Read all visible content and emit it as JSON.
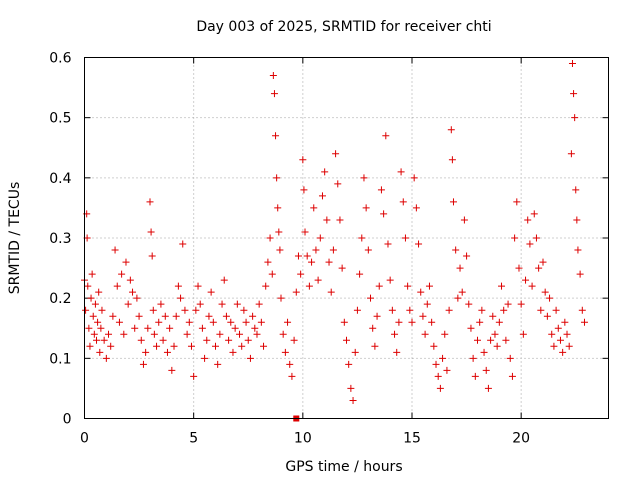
{
  "chart_data": {
    "type": "scatter",
    "title": "Day 003 of 2025, SRMTID for receiver chti",
    "xlabel": "GPS time / hours",
    "ylabel": "SRMTID / TECUs",
    "xlim": [
      0,
      24
    ],
    "ylim": [
      0,
      0.6
    ],
    "x_ticks": [
      0,
      5,
      10,
      15,
      20
    ],
    "x_tick_labels": [
      "0",
      "5",
      "10",
      "15",
      "20"
    ],
    "y_ticks": [
      0,
      0.1,
      0.2,
      0.3,
      0.4,
      0.5,
      0.6
    ],
    "y_tick_labels": [
      "0",
      "0.1",
      "0.2",
      "0.3",
      "0.4",
      "0.5",
      "0.6"
    ],
    "grid": true,
    "marker": "plus",
    "color": "#dd0000",
    "series": [
      {
        "name": "SRMTID",
        "points": [
          [
            0.0,
            0.23
          ],
          [
            0.05,
            0.18
          ],
          [
            0.1,
            0.34
          ],
          [
            0.12,
            0.3
          ],
          [
            0.15,
            0.22
          ],
          [
            0.2,
            0.15
          ],
          [
            0.25,
            0.12
          ],
          [
            0.3,
            0.2
          ],
          [
            0.35,
            0.24
          ],
          [
            0.4,
            0.17
          ],
          [
            0.45,
            0.14
          ],
          [
            0.5,
            0.19
          ],
          [
            0.55,
            0.13
          ],
          [
            0.6,
            0.16
          ],
          [
            0.65,
            0.21
          ],
          [
            0.7,
            0.11
          ],
          [
            0.75,
            0.15
          ],
          [
            0.8,
            0.18
          ],
          [
            0.9,
            0.13
          ],
          [
            1.0,
            0.1
          ],
          [
            1.1,
            0.14
          ],
          [
            1.2,
            0.12
          ],
          [
            1.3,
            0.17
          ],
          [
            1.4,
            0.28
          ],
          [
            1.5,
            0.22
          ],
          [
            1.6,
            0.16
          ],
          [
            1.7,
            0.24
          ],
          [
            1.8,
            0.14
          ],
          [
            1.9,
            0.26
          ],
          [
            2.0,
            0.19
          ],
          [
            2.1,
            0.23
          ],
          [
            2.2,
            0.21
          ],
          [
            2.3,
            0.15
          ],
          [
            2.4,
            0.2
          ],
          [
            2.5,
            0.17
          ],
          [
            2.6,
            0.13
          ],
          [
            2.7,
            0.09
          ],
          [
            2.8,
            0.11
          ],
          [
            2.9,
            0.15
          ],
          [
            3.0,
            0.36
          ],
          [
            3.05,
            0.31
          ],
          [
            3.1,
            0.27
          ],
          [
            3.15,
            0.18
          ],
          [
            3.2,
            0.14
          ],
          [
            3.3,
            0.12
          ],
          [
            3.4,
            0.16
          ],
          [
            3.5,
            0.19
          ],
          [
            3.6,
            0.13
          ],
          [
            3.7,
            0.17
          ],
          [
            3.8,
            0.11
          ],
          [
            3.9,
            0.15
          ],
          [
            4.0,
            0.08
          ],
          [
            4.1,
            0.12
          ],
          [
            4.2,
            0.17
          ],
          [
            4.3,
            0.22
          ],
          [
            4.4,
            0.2
          ],
          [
            4.5,
            0.29
          ],
          [
            4.6,
            0.18
          ],
          [
            4.7,
            0.14
          ],
          [
            4.8,
            0.16
          ],
          [
            4.9,
            0.12
          ],
          [
            5.0,
            0.07
          ],
          [
            5.1,
            0.18
          ],
          [
            5.2,
            0.22
          ],
          [
            5.3,
            0.19
          ],
          [
            5.4,
            0.15
          ],
          [
            5.5,
            0.1
          ],
          [
            5.6,
            0.13
          ],
          [
            5.7,
            0.17
          ],
          [
            5.8,
            0.21
          ],
          [
            5.9,
            0.16
          ],
          [
            6.0,
            0.12
          ],
          [
            6.1,
            0.09
          ],
          [
            6.2,
            0.14
          ],
          [
            6.3,
            0.19
          ],
          [
            6.4,
            0.23
          ],
          [
            6.5,
            0.17
          ],
          [
            6.6,
            0.13
          ],
          [
            6.7,
            0.16
          ],
          [
            6.8,
            0.11
          ],
          [
            6.9,
            0.15
          ],
          [
            7.0,
            0.19
          ],
          [
            7.1,
            0.14
          ],
          [
            7.2,
            0.12
          ],
          [
            7.3,
            0.18
          ],
          [
            7.4,
            0.16
          ],
          [
            7.5,
            0.13
          ],
          [
            7.6,
            0.1
          ],
          [
            7.7,
            0.17
          ],
          [
            7.8,
            0.15
          ],
          [
            7.9,
            0.14
          ],
          [
            8.0,
            0.19
          ],
          [
            8.1,
            0.16
          ],
          [
            8.2,
            0.12
          ],
          [
            8.3,
            0.22
          ],
          [
            8.4,
            0.26
          ],
          [
            8.5,
            0.3
          ],
          [
            8.6,
            0.24
          ],
          [
            8.65,
            0.57
          ],
          [
            8.7,
            0.54
          ],
          [
            8.75,
            0.47
          ],
          [
            8.8,
            0.4
          ],
          [
            8.85,
            0.35
          ],
          [
            8.9,
            0.31
          ],
          [
            8.95,
            0.28
          ],
          [
            9.0,
            0.2
          ],
          [
            9.1,
            0.14
          ],
          [
            9.2,
            0.11
          ],
          [
            9.3,
            0.16
          ],
          [
            9.4,
            0.09
          ],
          [
            9.5,
            0.07
          ],
          [
            9.6,
            0.13
          ],
          [
            9.7,
            0.21
          ],
          [
            9.8,
            0.27
          ],
          [
            9.9,
            0.24
          ],
          [
            10.0,
            0.43
          ],
          [
            10.05,
            0.38
          ],
          [
            10.1,
            0.31
          ],
          [
            10.2,
            0.27
          ],
          [
            10.3,
            0.22
          ],
          [
            10.4,
            0.26
          ],
          [
            10.5,
            0.35
          ],
          [
            10.6,
            0.28
          ],
          [
            10.7,
            0.23
          ],
          [
            10.8,
            0.3
          ],
          [
            10.9,
            0.37
          ],
          [
            11.0,
            0.41
          ],
          [
            11.1,
            0.33
          ],
          [
            11.2,
            0.26
          ],
          [
            11.3,
            0.21
          ],
          [
            11.4,
            0.28
          ],
          [
            11.5,
            0.44
          ],
          [
            11.6,
            0.39
          ],
          [
            11.7,
            0.33
          ],
          [
            11.8,
            0.25
          ],
          [
            11.9,
            0.16
          ],
          [
            12.0,
            0.13
          ],
          [
            12.1,
            0.09
          ],
          [
            12.2,
            0.05
          ],
          [
            12.3,
            0.03
          ],
          [
            12.4,
            0.11
          ],
          [
            12.5,
            0.18
          ],
          [
            12.6,
            0.24
          ],
          [
            12.7,
            0.3
          ],
          [
            12.8,
            0.4
          ],
          [
            12.9,
            0.35
          ],
          [
            13.0,
            0.28
          ],
          [
            13.1,
            0.2
          ],
          [
            13.2,
            0.15
          ],
          [
            13.3,
            0.12
          ],
          [
            13.4,
            0.17
          ],
          [
            13.5,
            0.22
          ],
          [
            13.6,
            0.38
          ],
          [
            13.7,
            0.34
          ],
          [
            13.8,
            0.47
          ],
          [
            13.9,
            0.29
          ],
          [
            14.0,
            0.23
          ],
          [
            14.1,
            0.18
          ],
          [
            14.2,
            0.14
          ],
          [
            14.3,
            0.11
          ],
          [
            14.4,
            0.16
          ],
          [
            14.5,
            0.41
          ],
          [
            14.6,
            0.36
          ],
          [
            14.7,
            0.3
          ],
          [
            14.8,
            0.22
          ],
          [
            14.9,
            0.18
          ],
          [
            15.0,
            0.16
          ],
          [
            15.1,
            0.4
          ],
          [
            15.2,
            0.35
          ],
          [
            15.3,
            0.29
          ],
          [
            15.4,
            0.21
          ],
          [
            15.5,
            0.17
          ],
          [
            15.6,
            0.14
          ],
          [
            15.7,
            0.19
          ],
          [
            15.8,
            0.22
          ],
          [
            15.9,
            0.16
          ],
          [
            16.0,
            0.12
          ],
          [
            16.1,
            0.09
          ],
          [
            16.2,
            0.07
          ],
          [
            16.3,
            0.05
          ],
          [
            16.4,
            0.1
          ],
          [
            16.5,
            0.14
          ],
          [
            16.6,
            0.08
          ],
          [
            16.7,
            0.18
          ],
          [
            16.8,
            0.48
          ],
          [
            16.85,
            0.43
          ],
          [
            16.9,
            0.36
          ],
          [
            17.0,
            0.28
          ],
          [
            17.1,
            0.2
          ],
          [
            17.2,
            0.25
          ],
          [
            17.3,
            0.21
          ],
          [
            17.4,
            0.33
          ],
          [
            17.5,
            0.27
          ],
          [
            17.6,
            0.19
          ],
          [
            17.7,
            0.15
          ],
          [
            17.8,
            0.1
          ],
          [
            17.9,
            0.07
          ],
          [
            18.0,
            0.13
          ],
          [
            18.1,
            0.16
          ],
          [
            18.2,
            0.18
          ],
          [
            18.3,
            0.11
          ],
          [
            18.4,
            0.08
          ],
          [
            18.5,
            0.05
          ],
          [
            18.6,
            0.13
          ],
          [
            18.7,
            0.17
          ],
          [
            18.8,
            0.14
          ],
          [
            18.9,
            0.12
          ],
          [
            19.0,
            0.16
          ],
          [
            19.1,
            0.22
          ],
          [
            19.2,
            0.18
          ],
          [
            19.3,
            0.13
          ],
          [
            19.4,
            0.19
          ],
          [
            19.5,
            0.1
          ],
          [
            19.6,
            0.07
          ],
          [
            19.7,
            0.3
          ],
          [
            19.8,
            0.36
          ],
          [
            19.9,
            0.25
          ],
          [
            20.0,
            0.19
          ],
          [
            20.1,
            0.14
          ],
          [
            20.2,
            0.23
          ],
          [
            20.3,
            0.33
          ],
          [
            20.4,
            0.29
          ],
          [
            20.5,
            0.22
          ],
          [
            20.6,
            0.34
          ],
          [
            20.7,
            0.3
          ],
          [
            20.8,
            0.25
          ],
          [
            20.9,
            0.18
          ],
          [
            21.0,
            0.26
          ],
          [
            21.1,
            0.21
          ],
          [
            21.2,
            0.17
          ],
          [
            21.3,
            0.2
          ],
          [
            21.4,
            0.14
          ],
          [
            21.5,
            0.12
          ],
          [
            21.6,
            0.18
          ],
          [
            21.7,
            0.15
          ],
          [
            21.8,
            0.13
          ],
          [
            21.9,
            0.11
          ],
          [
            22.0,
            0.16
          ],
          [
            22.1,
            0.14
          ],
          [
            22.2,
            0.12
          ],
          [
            22.3,
            0.44
          ],
          [
            22.35,
            0.59
          ],
          [
            22.4,
            0.54
          ],
          [
            22.45,
            0.5
          ],
          [
            22.5,
            0.38
          ],
          [
            22.55,
            0.33
          ],
          [
            22.6,
            0.28
          ],
          [
            22.7,
            0.24
          ],
          [
            22.8,
            0.18
          ],
          [
            22.9,
            0.16
          ]
        ]
      },
      {
        "name": "marker",
        "points": [
          [
            9.7,
            0.0
          ]
        ],
        "marker": "square"
      }
    ]
  }
}
